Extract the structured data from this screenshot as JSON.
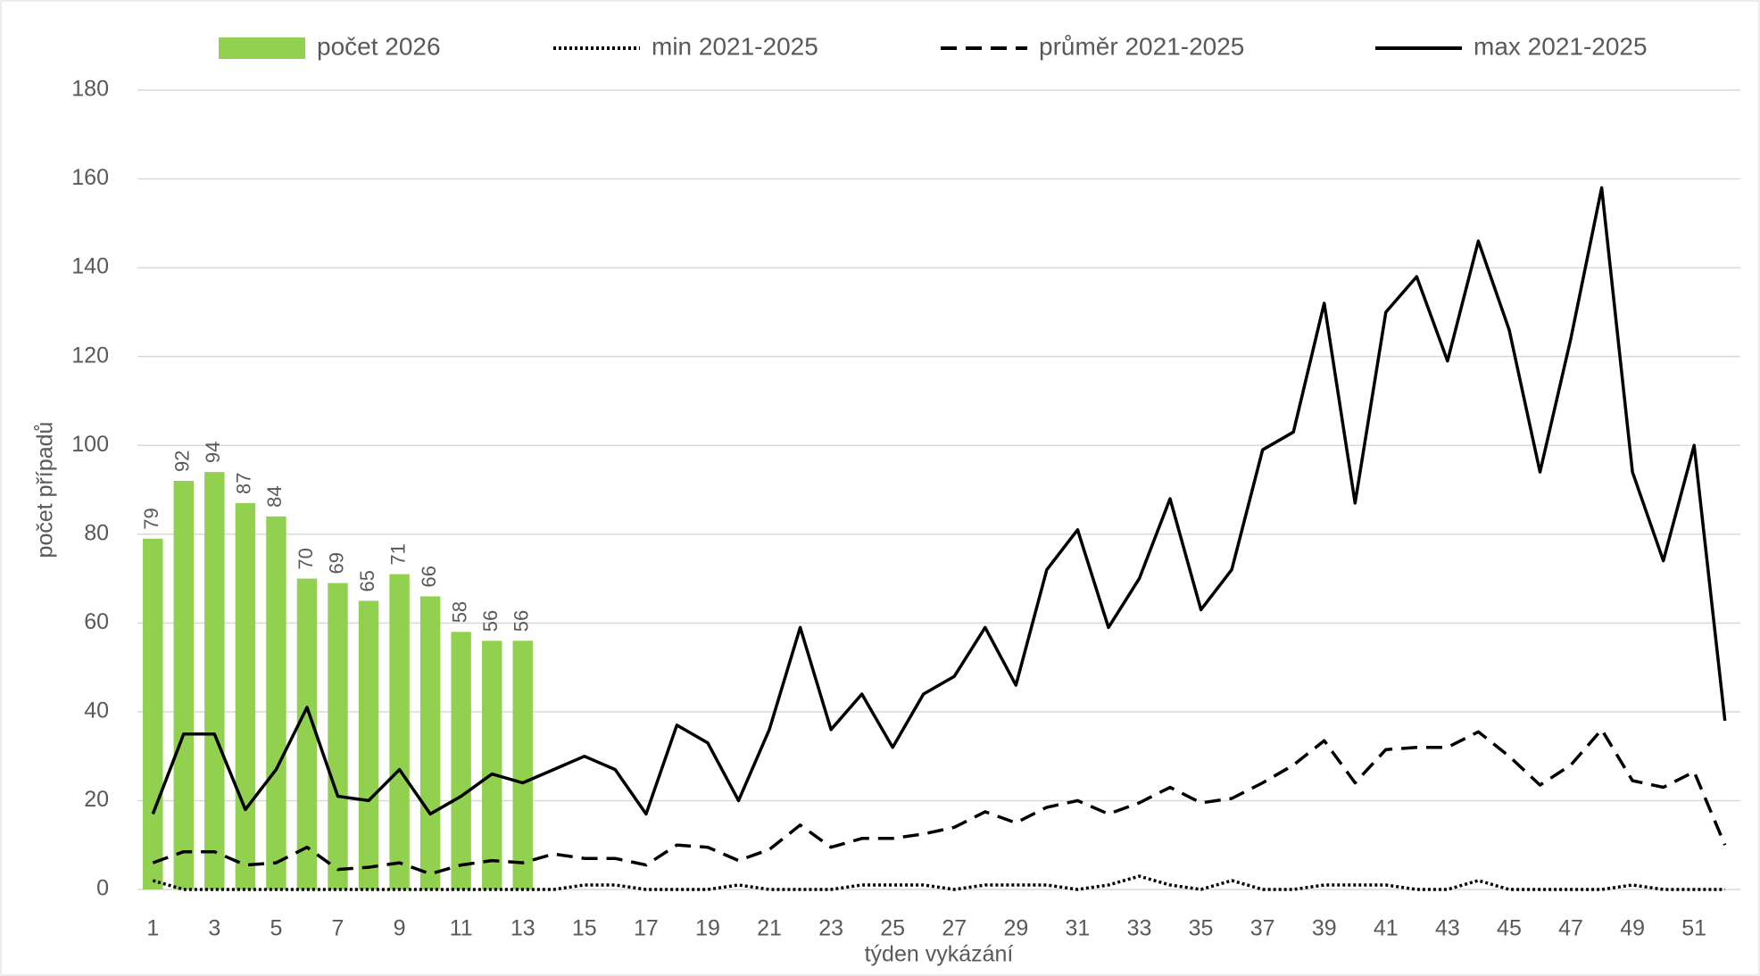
{
  "chart_data": {
    "type": "bar_line",
    "x_label": "týden vykázání",
    "y_label": "počet případů",
    "categories": [
      1,
      null,
      3,
      null,
      5,
      null,
      7,
      null,
      9,
      null,
      11,
      null,
      13,
      null,
      15,
      null,
      17,
      null,
      19,
      null,
      21,
      null,
      23,
      null,
      25,
      null,
      27,
      null,
      29,
      null,
      31,
      null,
      33,
      null,
      35,
      null,
      37,
      null,
      39,
      null,
      41,
      null,
      43,
      null,
      45,
      null,
      47,
      null,
      49,
      null,
      51,
      null
    ],
    "series": [
      {
        "name": "počet 2026",
        "kind": "bar",
        "color": "#92d050",
        "values": [
          79,
          92,
          94,
          87,
          84,
          70,
          69,
          65,
          71,
          66,
          58,
          56,
          56,
          null,
          null,
          null,
          null,
          null,
          null,
          null,
          null,
          null,
          null,
          null,
          null,
          null,
          null,
          null,
          null,
          null,
          null,
          null,
          null,
          null,
          null,
          null,
          null,
          null,
          null,
          null,
          null,
          null,
          null,
          null,
          null,
          null,
          null,
          null,
          null,
          null,
          null,
          null
        ]
      },
      {
        "name": "min 2021-2025",
        "kind": "line",
        "style": "dotted",
        "color": "#000000",
        "values": [
          2,
          0,
          0,
          0,
          0,
          0,
          0,
          0,
          0,
          0,
          0,
          0,
          0,
          0,
          1,
          1,
          0,
          0,
          0,
          1,
          0,
          0,
          0,
          1,
          1,
          1,
          0,
          1,
          1,
          1,
          0,
          1,
          3,
          1,
          0,
          2,
          0,
          0,
          1,
          1,
          1,
          0,
          0,
          2,
          0,
          0,
          0,
          0,
          1,
          0,
          0,
          0
        ]
      },
      {
        "name": "průměr 2021-2025",
        "kind": "line",
        "style": "dashed",
        "color": "#000000",
        "values": [
          6,
          8.5,
          8.5,
          5.5,
          6,
          9.5,
          4.5,
          5,
          6,
          3.5,
          5.5,
          6.5,
          6,
          8,
          7,
          7,
          5.5,
          10,
          9.5,
          6.5,
          9,
          14.5,
          9.5,
          11.5,
          11.5,
          12.5,
          14,
          17.5,
          15,
          18.5,
          20,
          17,
          19.5,
          23,
          19.5,
          20.5,
          24,
          28,
          33.5,
          24,
          31.5,
          32,
          32,
          35.5,
          30,
          23.5,
          28,
          36,
          24.5,
          23,
          26.5,
          10
        ]
      },
      {
        "name": "max 2021-2025",
        "kind": "line",
        "style": "solid",
        "color": "#000000",
        "values": [
          17,
          35,
          35,
          18,
          27,
          41,
          21,
          20,
          27,
          17,
          21,
          26,
          24,
          27,
          30,
          27,
          17,
          37,
          33,
          20,
          36,
          59,
          36,
          44,
          32,
          44,
          48,
          59,
          46,
          72,
          81,
          59,
          70,
          88,
          63,
          72,
          99,
          103,
          132,
          87,
          130,
          138,
          119,
          146,
          126,
          94,
          124,
          158,
          94,
          74,
          100,
          38
        ]
      }
    ],
    "ylim": [
      0,
      180
    ],
    "yticks": [
      0,
      20,
      40,
      60,
      80,
      100,
      120,
      140,
      160,
      180
    ],
    "grid": true,
    "legend": "top"
  }
}
